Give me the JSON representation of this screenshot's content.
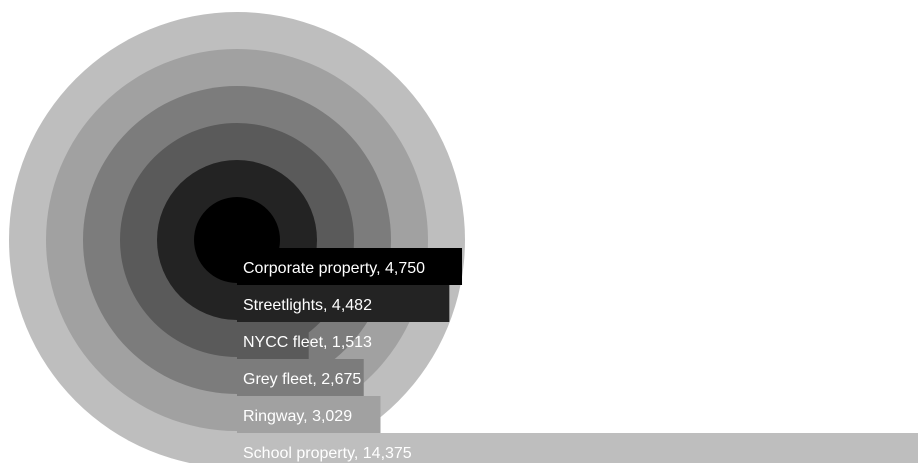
{
  "chart_data": {
    "type": "bar",
    "subtype": "concentric-rings",
    "categories": [
      "Corporate property",
      "Streetlights",
      "NYCC fleet",
      "Grey fleet",
      "Ringway",
      "School property"
    ],
    "values": [
      4750,
      4482,
      1513,
      2675,
      3029,
      14375
    ],
    "value_labels": [
      "4,750",
      "4,482",
      "1,513",
      "2,675",
      "3,029",
      "14,375"
    ],
    "labels": [
      "Corporate property, 4,750",
      "Streetlights, 4,482",
      "NYCC fleet, 1,513",
      "Grey fleet, 2,675",
      "Ringway, 3,029",
      "School property, 14,375"
    ],
    "colors": [
      "#000000",
      "#232323",
      "#5a5a5a",
      "#7c7c7c",
      "#a1a1a1",
      "#bebebe"
    ],
    "label_color": "#ffffff",
    "title": "",
    "xlabel": "",
    "ylabel": "",
    "xlim": [
      0,
      14375
    ],
    "grid": false,
    "legend": "none"
  }
}
